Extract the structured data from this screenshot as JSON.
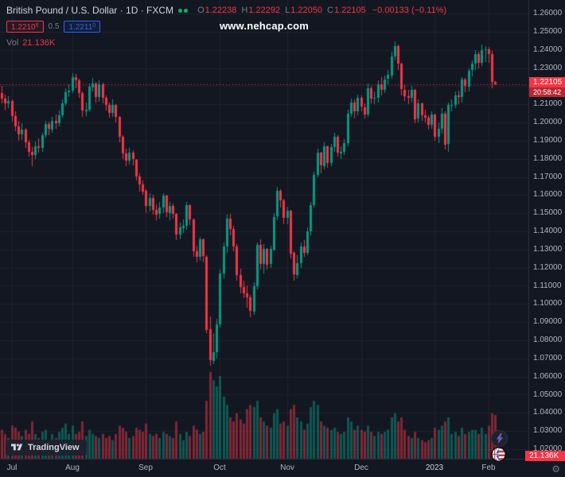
{
  "header": {
    "title": "British Pound / U.S. Dollar · 1D · FXCM",
    "ohlc": {
      "o_label": "O",
      "o": "1.22238",
      "h_label": "H",
      "h": "1.22292",
      "l_label": "L",
      "l": "1.22050",
      "c_label": "C",
      "c": "1.22105",
      "change": "−0.00133 (−0.11%)"
    },
    "bid": {
      "main": "1.2210",
      "sup": "5"
    },
    "spread": "0.5",
    "ask": {
      "main": "1.2211",
      "sup": "0"
    },
    "vol_label": "Vol",
    "vol_value": "21.136K"
  },
  "watermark": "www.nehcap.com",
  "price_label": {
    "price": "1.22105",
    "countdown": "20:58:42"
  },
  "volume_axis_label": "21.136K",
  "toolbar": {
    "tradingview_label": "TradingView",
    "gear": "⚙"
  },
  "colors": {
    "background": "#131722",
    "grid": "#1e222d",
    "up": "#089981",
    "down": "#f23645",
    "vol_up": "rgba(8,153,129,0.5)",
    "vol_down": "rgba(242,54,69,0.5)",
    "axis_text": "#b2b5be",
    "text_primary": "#d1d4dc",
    "text_muted": "#787b86",
    "accent_blue": "#2962ff",
    "status_dot": "#00b86b"
  },
  "chart_data": {
    "type": "candlestick",
    "title": "British Pound / U.S. Dollar, 1D, FXCM",
    "symbol": "GBPUSD",
    "interval": "1D",
    "last_close": 1.22105,
    "last_volume_k": 21.136,
    "price_axis": {
      "min": 1.02,
      "max": 1.26,
      "step": 0.01,
      "tick_labels": [
        "1.26000",
        "1.25000",
        "1.24000",
        "1.23000",
        "1.22000",
        "1.21000",
        "1.20000",
        "1.19000",
        "1.18000",
        "1.17000",
        "1.16000",
        "1.15000",
        "1.14000",
        "1.13000",
        "1.12000",
        "1.11000",
        "1.10000",
        "1.09000",
        "1.08000",
        "1.07000",
        "1.06000",
        "1.05000",
        "1.04000",
        "1.03000",
        "1.02000"
      ]
    },
    "time_axis": {
      "ticks": [
        {
          "label": "Jul",
          "index": 3
        },
        {
          "label": "Aug",
          "index": 21
        },
        {
          "label": "Sep",
          "index": 43
        },
        {
          "label": "Oct",
          "index": 65
        },
        {
          "label": "Nov",
          "index": 85
        },
        {
          "label": "Dec",
          "index": 107
        },
        {
          "label": "2023",
          "index": 129
        },
        {
          "label": "Feb",
          "index": 145
        }
      ]
    },
    "volume_unit": "K",
    "candles_format": [
      "open",
      "high",
      "low",
      "close",
      "volume_k"
    ],
    "candles": [
      [
        1.216,
        1.22,
        1.2105,
        1.213,
        14
      ],
      [
        1.213,
        1.2152,
        1.2066,
        1.2105,
        12
      ],
      [
        1.2105,
        1.2145,
        1.208,
        1.2118,
        10
      ],
      [
        1.2118,
        1.2125,
        1.2005,
        1.2035,
        16
      ],
      [
        1.2035,
        1.206,
        1.195,
        1.198,
        15
      ],
      [
        1.198,
        1.201,
        1.19,
        1.1935,
        13
      ],
      [
        1.1935,
        1.1995,
        1.1905,
        1.1962,
        11
      ],
      [
        1.1962,
        1.197,
        1.186,
        1.189,
        14
      ],
      [
        1.189,
        1.1905,
        1.181,
        1.1838,
        12
      ],
      [
        1.1838,
        1.1865,
        1.1758,
        1.182,
        18
      ],
      [
        1.182,
        1.1895,
        1.18,
        1.187,
        12
      ],
      [
        1.187,
        1.1912,
        1.1835,
        1.1862,
        10
      ],
      [
        1.1862,
        1.1945,
        1.184,
        1.193,
        13
      ],
      [
        1.193,
        1.201,
        1.1915,
        1.199,
        14
      ],
      [
        1.199,
        1.2005,
        1.193,
        1.1962,
        9
      ],
      [
        1.1962,
        1.203,
        1.1945,
        1.201,
        12
      ],
      [
        1.201,
        1.2045,
        1.1965,
        1.1998,
        10
      ],
      [
        1.1998,
        1.2065,
        1.198,
        1.204,
        13
      ],
      [
        1.204,
        1.2125,
        1.2025,
        1.2105,
        15
      ],
      [
        1.2105,
        1.219,
        1.209,
        1.2168,
        17
      ],
      [
        1.2168,
        1.221,
        1.214,
        1.2175,
        12
      ],
      [
        1.2175,
        1.227,
        1.216,
        1.2248,
        16
      ],
      [
        1.2248,
        1.2265,
        1.219,
        1.223,
        12
      ],
      [
        1.223,
        1.224,
        1.2135,
        1.216,
        13
      ],
      [
        1.216,
        1.217,
        1.203,
        1.2062,
        18
      ],
      [
        1.2062,
        1.211,
        1.2035,
        1.207,
        11
      ],
      [
        1.207,
        1.2215,
        1.206,
        1.2195,
        14
      ],
      [
        1.2195,
        1.2245,
        1.217,
        1.2215,
        12
      ],
      [
        1.2215,
        1.2225,
        1.211,
        1.214,
        11
      ],
      [
        1.214,
        1.223,
        1.2115,
        1.221,
        10
      ],
      [
        1.221,
        1.222,
        1.2105,
        1.2135,
        12
      ],
      [
        1.2135,
        1.215,
        1.2065,
        1.2095,
        10
      ],
      [
        1.2095,
        1.211,
        1.2025,
        1.205,
        11
      ],
      [
        1.205,
        1.2125,
        1.203,
        1.2095,
        9
      ],
      [
        1.2095,
        1.21,
        1.2,
        1.203,
        12
      ],
      [
        1.203,
        1.2035,
        1.189,
        1.192,
        16
      ],
      [
        1.192,
        1.193,
        1.18,
        1.183,
        15
      ],
      [
        1.183,
        1.1855,
        1.176,
        1.179,
        13
      ],
      [
        1.179,
        1.186,
        1.177,
        1.1832,
        10
      ],
      [
        1.1832,
        1.1845,
        1.1765,
        1.1795,
        11
      ],
      [
        1.1795,
        1.18,
        1.168,
        1.1702,
        15
      ],
      [
        1.1702,
        1.172,
        1.162,
        1.166,
        14
      ],
      [
        1.166,
        1.168,
        1.16,
        1.1622,
        13
      ],
      [
        1.1622,
        1.163,
        1.15,
        1.154,
        17
      ],
      [
        1.154,
        1.161,
        1.151,
        1.1585,
        12
      ],
      [
        1.1585,
        1.16,
        1.149,
        1.152,
        11
      ],
      [
        1.152,
        1.155,
        1.146,
        1.1495,
        12
      ],
      [
        1.1495,
        1.156,
        1.147,
        1.153,
        10
      ],
      [
        1.153,
        1.161,
        1.15,
        1.1595,
        13
      ],
      [
        1.1595,
        1.16,
        1.148,
        1.1502,
        12
      ],
      [
        1.1502,
        1.156,
        1.146,
        1.154,
        11
      ],
      [
        1.154,
        1.1555,
        1.147,
        1.1495,
        10
      ],
      [
        1.1495,
        1.15,
        1.135,
        1.138,
        18
      ],
      [
        1.138,
        1.145,
        1.1355,
        1.142,
        12
      ],
      [
        1.142,
        1.1465,
        1.139,
        1.1432,
        9
      ],
      [
        1.1432,
        1.156,
        1.141,
        1.1545,
        13
      ],
      [
        1.1545,
        1.155,
        1.1435,
        1.1465,
        11
      ],
      [
        1.1465,
        1.147,
        1.126,
        1.129,
        16
      ],
      [
        1.129,
        1.132,
        1.123,
        1.1258,
        14
      ],
      [
        1.1258,
        1.137,
        1.124,
        1.1355,
        12
      ],
      [
        1.1355,
        1.136,
        1.123,
        1.1262,
        13
      ],
      [
        1.1262,
        1.127,
        1.084,
        1.086,
        28
      ],
      [
        1.086,
        1.093,
        1.066,
        1.0688,
        42
      ],
      [
        1.0688,
        1.084,
        1.067,
        1.0735,
        38
      ],
      [
        1.0735,
        1.092,
        1.07,
        1.0888,
        35
      ],
      [
        1.0888,
        1.119,
        1.087,
        1.117,
        40
      ],
      [
        1.117,
        1.134,
        1.114,
        1.1318,
        30
      ],
      [
        1.1318,
        1.149,
        1.128,
        1.147,
        26
      ],
      [
        1.147,
        1.1495,
        1.138,
        1.1415,
        20
      ],
      [
        1.1415,
        1.143,
        1.129,
        1.1318,
        18
      ],
      [
        1.1318,
        1.133,
        1.113,
        1.116,
        22
      ],
      [
        1.116,
        1.1195,
        1.106,
        1.1095,
        19
      ],
      [
        1.1095,
        1.113,
        1.103,
        1.1058,
        17
      ],
      [
        1.1058,
        1.11,
        1.098,
        1.1035,
        24
      ],
      [
        1.1035,
        1.105,
        1.0925,
        1.096,
        26
      ],
      [
        1.096,
        1.112,
        1.094,
        1.1098,
        25
      ],
      [
        1.1098,
        1.134,
        1.108,
        1.1325,
        28
      ],
      [
        1.1325,
        1.1355,
        1.119,
        1.122,
        20
      ],
      [
        1.122,
        1.133,
        1.117,
        1.1305,
        18
      ],
      [
        1.1305,
        1.131,
        1.119,
        1.1218,
        16
      ],
      [
        1.1218,
        1.132,
        1.12,
        1.1302,
        15
      ],
      [
        1.1302,
        1.15,
        1.129,
        1.148,
        22
      ],
      [
        1.148,
        1.1645,
        1.146,
        1.1622,
        24
      ],
      [
        1.1622,
        1.163,
        1.153,
        1.157,
        17
      ],
      [
        1.157,
        1.158,
        1.144,
        1.1475,
        18
      ],
      [
        1.1475,
        1.1535,
        1.144,
        1.1515,
        16
      ],
      [
        1.1515,
        1.152,
        1.125,
        1.128,
        24
      ],
      [
        1.128,
        1.129,
        1.113,
        1.116,
        26
      ],
      [
        1.116,
        1.127,
        1.114,
        1.1225,
        20
      ],
      [
        1.1225,
        1.134,
        1.12,
        1.1318,
        18
      ],
      [
        1.1318,
        1.135,
        1.126,
        1.1282,
        14
      ],
      [
        1.1282,
        1.142,
        1.127,
        1.14,
        17
      ],
      [
        1.14,
        1.156,
        1.138,
        1.1545,
        25
      ],
      [
        1.1545,
        1.173,
        1.153,
        1.171,
        28
      ],
      [
        1.171,
        1.1855,
        1.17,
        1.1832,
        26
      ],
      [
        1.1832,
        1.184,
        1.172,
        1.176,
        18
      ],
      [
        1.176,
        1.189,
        1.174,
        1.187,
        16
      ],
      [
        1.187,
        1.1875,
        1.175,
        1.1778,
        15
      ],
      [
        1.1778,
        1.188,
        1.176,
        1.1865,
        14
      ],
      [
        1.1865,
        1.1945,
        1.184,
        1.192,
        15
      ],
      [
        1.192,
        1.193,
        1.181,
        1.1832,
        13
      ],
      [
        1.1832,
        1.187,
        1.18,
        1.184,
        12
      ],
      [
        1.184,
        1.191,
        1.182,
        1.1888,
        13
      ],
      [
        1.1888,
        1.207,
        1.187,
        1.205,
        20
      ],
      [
        1.205,
        1.213,
        1.203,
        1.211,
        18
      ],
      [
        1.211,
        1.2125,
        1.202,
        1.206,
        14
      ],
      [
        1.206,
        1.2155,
        1.204,
        1.2135,
        16
      ],
      [
        1.2135,
        1.215,
        1.206,
        1.2085,
        14
      ],
      [
        1.2085,
        1.2105,
        1.202,
        1.2045,
        13
      ],
      [
        1.2045,
        1.2215,
        1.203,
        1.219,
        16
      ],
      [
        1.219,
        1.22,
        1.2105,
        1.2132,
        13
      ],
      [
        1.2132,
        1.217,
        1.21,
        1.2135,
        11
      ],
      [
        1.2135,
        1.223,
        1.211,
        1.221,
        13
      ],
      [
        1.221,
        1.225,
        1.215,
        1.218,
        12
      ],
      [
        1.218,
        1.226,
        1.216,
        1.2238,
        13
      ],
      [
        1.2238,
        1.229,
        1.221,
        1.2262,
        14
      ],
      [
        1.2262,
        1.239,
        1.224,
        1.2365,
        20
      ],
      [
        1.2365,
        1.2446,
        1.234,
        1.242,
        22
      ],
      [
        1.242,
        1.243,
        1.229,
        1.2322,
        18
      ],
      [
        1.2322,
        1.233,
        1.215,
        1.218,
        20
      ],
      [
        1.218,
        1.221,
        1.212,
        1.2145,
        14
      ],
      [
        1.2145,
        1.218,
        1.21,
        1.2135,
        11
      ],
      [
        1.2135,
        1.22,
        1.211,
        1.218,
        10
      ],
      [
        1.218,
        1.2185,
        1.1995,
        1.202,
        13
      ],
      [
        1.202,
        1.2125,
        1.2,
        1.2105,
        10
      ],
      [
        1.2105,
        1.211,
        1.201,
        1.2038,
        9
      ],
      [
        1.2038,
        1.207,
        1.2,
        1.2025,
        8
      ],
      [
        1.2025,
        1.204,
        1.196,
        1.1985,
        9
      ],
      [
        1.1985,
        1.206,
        1.1965,
        1.2042,
        10
      ],
      [
        1.2042,
        1.205,
        1.19,
        1.192,
        15
      ],
      [
        1.192,
        1.2,
        1.1885,
        1.1965,
        14
      ],
      [
        1.1965,
        1.208,
        1.194,
        1.205,
        16
      ],
      [
        1.205,
        1.206,
        1.185,
        1.188,
        18
      ],
      [
        1.188,
        1.211,
        1.184,
        1.2095,
        20
      ],
      [
        1.2095,
        1.2125,
        1.206,
        1.2098,
        12
      ],
      [
        1.2098,
        1.217,
        1.208,
        1.215,
        13
      ],
      [
        1.215,
        1.2175,
        1.21,
        1.214,
        11
      ],
      [
        1.214,
        1.225,
        1.211,
        1.2235,
        15
      ],
      [
        1.2235,
        1.2245,
        1.2165,
        1.2198,
        12
      ],
      [
        1.2198,
        1.23,
        1.217,
        1.2285,
        13
      ],
      [
        1.2285,
        1.234,
        1.2255,
        1.2322,
        14
      ],
      [
        1.2322,
        1.24,
        1.229,
        1.2375,
        14
      ],
      [
        1.2375,
        1.239,
        1.23,
        1.2328,
        12
      ],
      [
        1.2328,
        1.243,
        1.231,
        1.24,
        15
      ],
      [
        1.24,
        1.242,
        1.2335,
        1.2402,
        12
      ],
      [
        1.2402,
        1.2415,
        1.233,
        1.2376,
        16
      ],
      [
        1.2376,
        1.2395,
        1.219,
        1.2224,
        22
      ],
      [
        1.22238,
        1.22292,
        1.2205,
        1.22105,
        21.136
      ]
    ]
  }
}
